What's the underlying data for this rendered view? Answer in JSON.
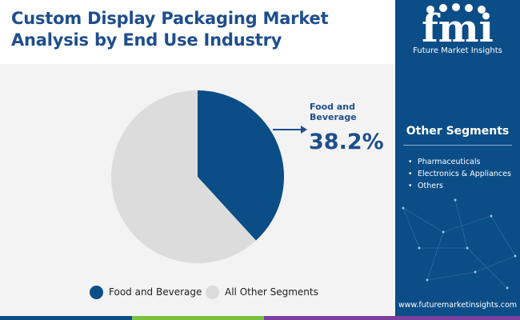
{
  "title": "Custom Display Packaging Market Analysis by End Use Industry",
  "brand": {
    "name": "Future Market Insights",
    "logo_letters": "fmi"
  },
  "other_segments": {
    "title": "Other Segments",
    "items": [
      "Pharmaceuticals",
      "Electronics & Appliances",
      "Others"
    ]
  },
  "website": "www.futuremarketinsights.com",
  "callout": {
    "label": "Food and Beverage",
    "value": "38.2%"
  },
  "colors": {
    "primary": "#0b4d87",
    "title": "#1e4e8c",
    "slice_other": "#dcdcdc",
    "bar": [
      "#0b4d87",
      "#7ac143",
      "#7b3fa0"
    ]
  },
  "chart_data": {
    "type": "pie",
    "title": "Custom Display Packaging Market Analysis by End Use Industry",
    "categories": [
      "Food and Beverage",
      "All Other Segments"
    ],
    "values": [
      38.2,
      61.8
    ],
    "colors": [
      "#0b4d87",
      "#dcdcdc"
    ],
    "legend": {
      "position": "bottom",
      "entries": [
        "Food and Beverage",
        "All Other Segments"
      ]
    }
  }
}
